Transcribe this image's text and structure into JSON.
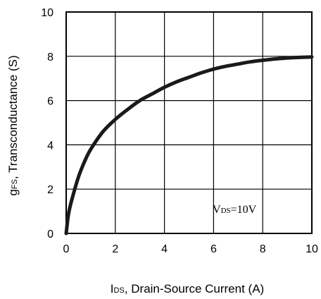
{
  "chart_data": {
    "type": "line",
    "xlabel_symbol": "I",
    "xlabel_subscript": "DS",
    "xlabel_text": ", Drain-Source Current (A)",
    "ylabel_symbol": "g",
    "ylabel_subscript": "FS",
    "ylabel_text": ", Transconductance (S)",
    "xlim": [
      0,
      10
    ],
    "ylim": [
      0,
      10
    ],
    "xticks": [
      0,
      2,
      4,
      6,
      8,
      10
    ],
    "yticks": [
      0,
      2,
      4,
      6,
      8,
      10
    ],
    "grid": true,
    "annotation": {
      "prefix": "V",
      "subscript": "DS",
      "suffix": "=10V"
    },
    "series": [
      {
        "x": [
          0,
          0.1,
          0.25,
          0.5,
          0.75,
          1,
          1.5,
          2,
          2.5,
          3,
          3.5,
          4,
          4.5,
          5,
          5.5,
          6,
          6.5,
          7,
          7.5,
          8,
          8.5,
          9,
          9.5,
          10
        ],
        "y": [
          0,
          0.9,
          1.6,
          2.55,
          3.25,
          3.8,
          4.6,
          5.15,
          5.6,
          6.0,
          6.3,
          6.6,
          6.85,
          7.05,
          7.25,
          7.42,
          7.55,
          7.65,
          7.75,
          7.82,
          7.88,
          7.92,
          7.95,
          7.97
        ]
      }
    ]
  }
}
